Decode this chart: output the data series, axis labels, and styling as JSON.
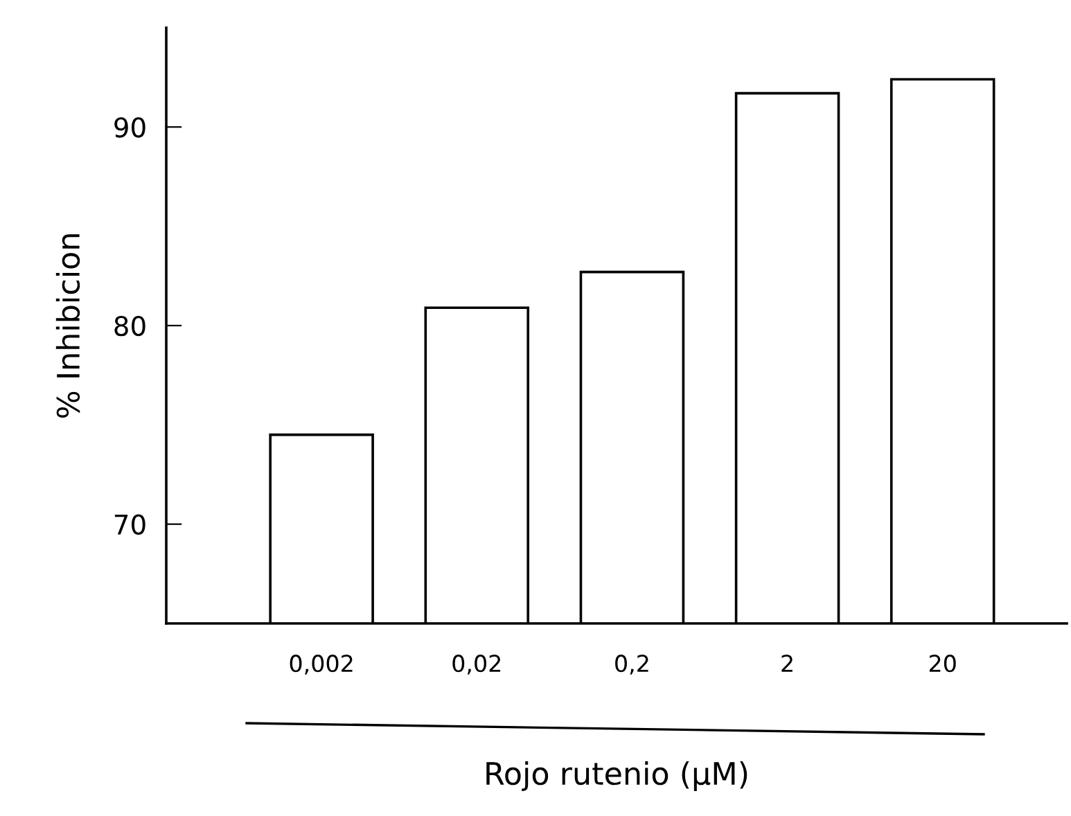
{
  "chart_data": {
    "type": "bar",
    "xlabel": "Rojo rutenio (μM)",
    "ylabel": "% Inhibicion",
    "categories": [
      "0,002",
      "0,02",
      "0,2",
      "2",
      "20"
    ],
    "values": [
      74.5,
      80.9,
      82.7,
      91.7,
      92.4
    ],
    "color": "#ffffff",
    "ylim": [
      65,
      95
    ],
    "yticks": [
      70,
      80,
      90
    ],
    "grid": false
  }
}
